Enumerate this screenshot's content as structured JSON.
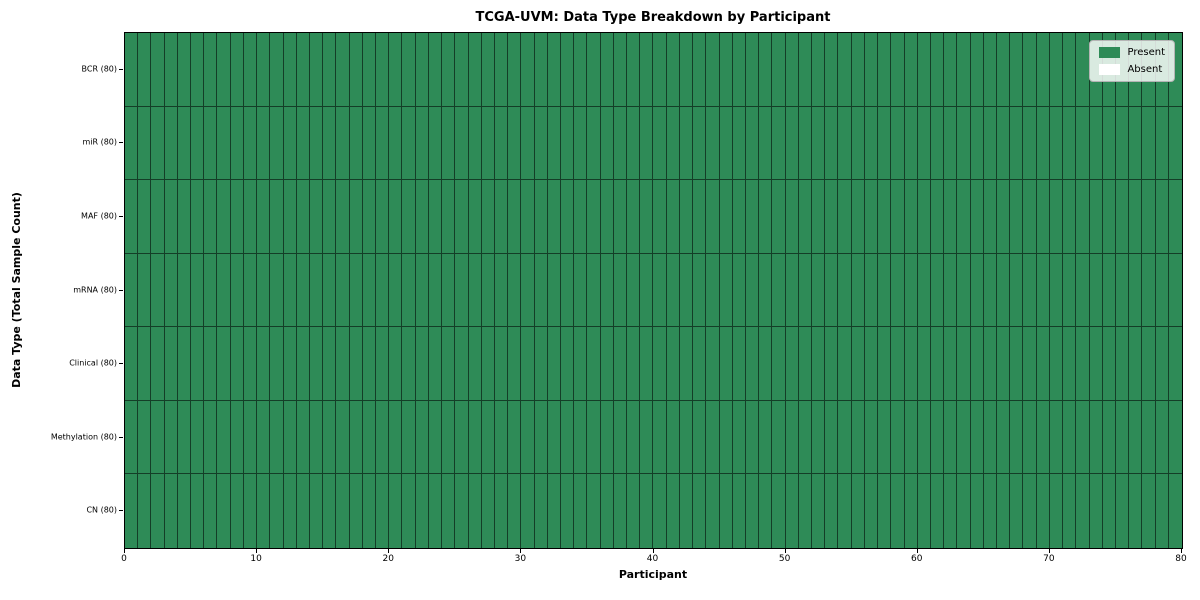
{
  "chart_data": {
    "type": "heatmap",
    "title": "TCGA-UVM: Data Type Breakdown by Participant",
    "xlabel": "Participant",
    "ylabel": "Data Type (Total Sample Count)",
    "n_participants": 80,
    "x_ticks": [
      0,
      10,
      20,
      30,
      40,
      50,
      60,
      70,
      80
    ],
    "xlim": [
      0,
      80
    ],
    "grid": true,
    "rows": [
      {
        "label": "BCR (80)",
        "data_type": "BCR",
        "total_samples": 80,
        "present_count": 80
      },
      {
        "label": "miR (80)",
        "data_type": "miR",
        "total_samples": 80,
        "present_count": 80
      },
      {
        "label": "MAF (80)",
        "data_type": "MAF",
        "total_samples": 80,
        "present_count": 80
      },
      {
        "label": "mRNA (80)",
        "data_type": "mRNA",
        "total_samples": 80,
        "present_count": 80
      },
      {
        "label": "Clinical (80)",
        "data_type": "Clinical",
        "total_samples": 80,
        "present_count": 80
      },
      {
        "label": "Methylation (80)",
        "data_type": "Methylation",
        "total_samples": 80,
        "present_count": 80
      },
      {
        "label": "CN (80)",
        "data_type": "CN",
        "total_samples": 80,
        "present_count": 80
      }
    ],
    "legend": {
      "position": "upper right",
      "items": [
        {
          "label": "Present",
          "color": "#2e8b57"
        },
        {
          "label": "Absent",
          "color": "#ffffff"
        }
      ]
    },
    "colors": {
      "present": "#2e8b57",
      "absent": "#ffffff"
    }
  }
}
